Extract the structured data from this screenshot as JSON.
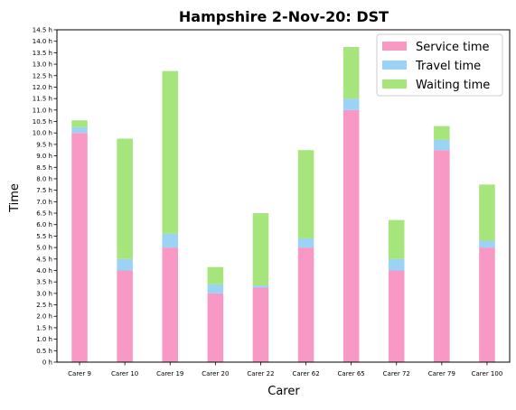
{
  "chart_data": {
    "type": "bar",
    "stacked": true,
    "title": "Hampshire 2-Nov-20: DST",
    "xlabel": "Carer",
    "ylabel": "Time",
    "ylim": [
      0,
      14.5
    ],
    "yticks": [
      "0 h",
      "0.5 h",
      "1.0 h",
      "1.5 h",
      "2.0 h",
      "2.5 h",
      "3.0 h",
      "3.5 h",
      "4.0 h",
      "4.5 h",
      "5.0 h",
      "5.5 h",
      "6.0 h",
      "6.5 h",
      "7.0 h",
      "7.5 h",
      "8.0 h",
      "8.5 h",
      "9.0 h",
      "9.5 h",
      "10.0 h",
      "10.5 h",
      "11.0 h",
      "11.5 h",
      "12.0 h",
      "12.5 h",
      "13.0 h",
      "13.5 h",
      "14.0 h",
      "14.5 h"
    ],
    "categories": [
      "Carer 9",
      "Carer 10",
      "Carer 19",
      "Carer 20",
      "Carer 22",
      "Carer 62",
      "Carer 65",
      "Carer 72",
      "Carer 79",
      "Carer 100"
    ],
    "series": [
      {
        "name": "Service time",
        "color": "#f799c4",
        "values": [
          10.0,
          4.0,
          5.0,
          3.0,
          3.25,
          5.0,
          11.0,
          4.0,
          9.25,
          5.0
        ]
      },
      {
        "name": "Travel time",
        "color": "#9bd3f7",
        "values": [
          0.25,
          0.5,
          0.6,
          0.4,
          0.1,
          0.4,
          0.5,
          0.5,
          0.45,
          0.3
        ]
      },
      {
        "name": "Waiting time",
        "color": "#a6e57c",
        "values": [
          0.3,
          5.25,
          7.1,
          0.75,
          3.15,
          3.85,
          2.25,
          1.7,
          0.6,
          2.45
        ]
      }
    ],
    "legend_position": "top-right",
    "grid": false
  }
}
